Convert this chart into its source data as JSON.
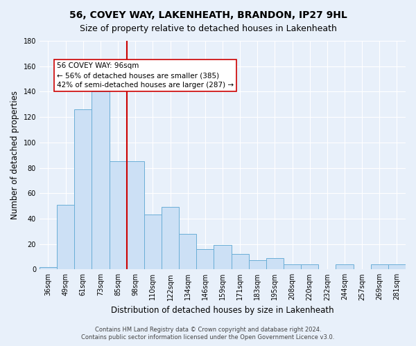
{
  "title": "56, COVEY WAY, LAKENHEATH, BRANDON, IP27 9HL",
  "subtitle": "Size of property relative to detached houses in Lakenheath",
  "xlabel": "Distribution of detached houses by size in Lakenheath",
  "ylabel": "Number of detached properties",
  "footer_line1": "Contains HM Land Registry data © Crown copyright and database right 2024.",
  "footer_line2": "Contains public sector information licensed under the Open Government Licence v3.0.",
  "bar_labels": [
    "36sqm",
    "49sqm",
    "61sqm",
    "73sqm",
    "85sqm",
    "98sqm",
    "110sqm",
    "122sqm",
    "134sqm",
    "146sqm",
    "159sqm",
    "171sqm",
    "183sqm",
    "195sqm",
    "208sqm",
    "220sqm",
    "232sqm",
    "244sqm",
    "257sqm",
    "269sqm",
    "281sqm"
  ],
  "bar_values": [
    2,
    51,
    126,
    140,
    85,
    85,
    43,
    49,
    28,
    16,
    19,
    12,
    7,
    9,
    4,
    4,
    0,
    4,
    0,
    4,
    4
  ],
  "bar_color": "#cce0f5",
  "bar_edge_color": "#6aaed6",
  "annotation_text_line1": "56 COVEY WAY: 96sqm",
  "annotation_text_line2": "← 56% of detached houses are smaller (385)",
  "annotation_text_line3": "42% of semi-detached houses are larger (287) →",
  "vline_index": 5,
  "vline_color": "#cc0000",
  "ylim": [
    0,
    180
  ],
  "yticks": [
    0,
    20,
    40,
    60,
    80,
    100,
    120,
    140,
    160,
    180
  ],
  "background_color": "#e8f0fa",
  "grid_color": "#ffffff",
  "title_fontsize": 10,
  "subtitle_fontsize": 9,
  "axis_label_fontsize": 8.5,
  "tick_fontsize": 7,
  "footer_fontsize": 6,
  "annot_fontsize": 7.5
}
